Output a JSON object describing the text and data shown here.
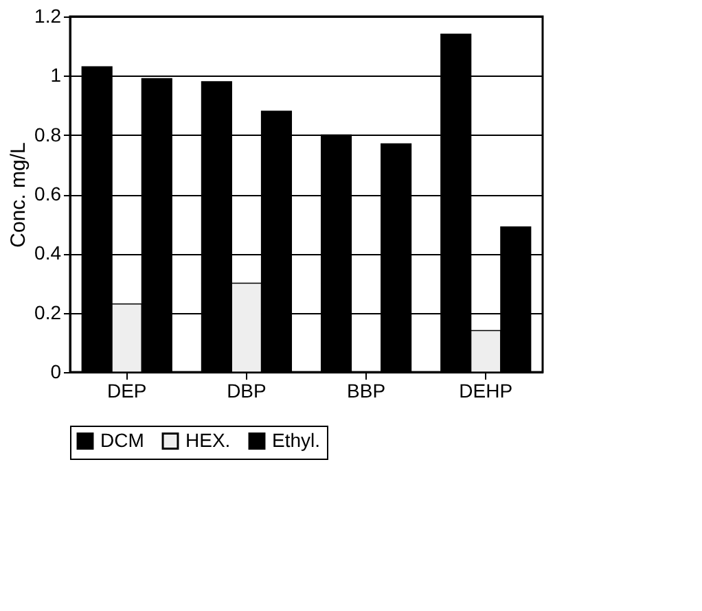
{
  "chart_data": {
    "type": "bar",
    "ylabel": "Conc. mg/L",
    "categories": [
      "DEP",
      "DBP",
      "BBP",
      "DEHP"
    ],
    "series": [
      {
        "name": "DCM",
        "color": "#000000",
        "values": [
          1.03,
          0.98,
          0.8,
          1.14
        ]
      },
      {
        "name": "HEX.",
        "color": "#eeeeee",
        "values": [
          0.23,
          0.3,
          null,
          0.14
        ]
      },
      {
        "name": "Ethyl.",
        "color": "#000000",
        "values": [
          0.99,
          0.88,
          0.77,
          0.49
        ]
      }
    ],
    "ylim": [
      0,
      1.2
    ],
    "yticks": [
      0,
      0.2,
      0.4,
      0.6,
      0.8,
      1,
      1.2
    ],
    "grid": "y",
    "legend": "bottom"
  }
}
